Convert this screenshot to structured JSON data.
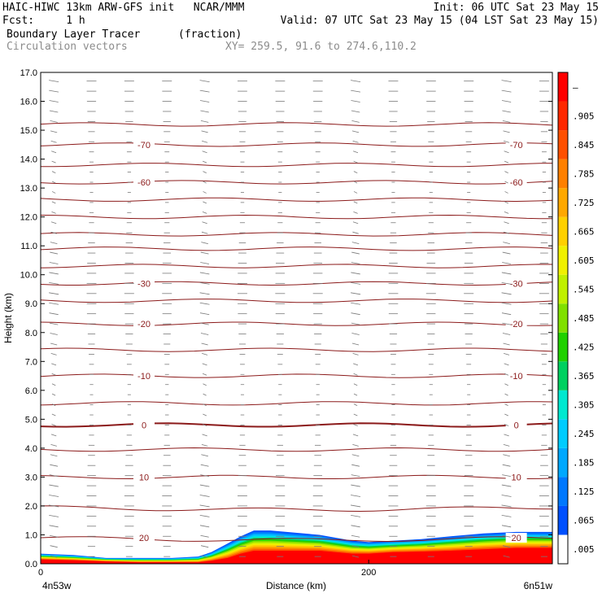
{
  "header": {
    "line1_left": "HAIC-HIWC 13km ARW-GFS init   NCAR/MMM",
    "line1_right": "Init: 06 UTC Sat 23 May 15",
    "line2_left": "Fcst:     1 h",
    "line2_right": "Valid: 07 UTC Sat 23 May 15 (04 LST Sat 23 May 15)",
    "field_name": "Boundary Layer Tracer",
    "field_units": "(fraction)",
    "vector_name": "Circulation vectors",
    "xy_text": "XY= 259.5, 91.6 to 274.6,110.2"
  },
  "chart_data": {
    "type": "cross-section",
    "ylabel": "Height (km)",
    "xlabel": "Distance (km)",
    "x_left_label": "4n53w",
    "x_right_label": "6n51w",
    "xlim": [
      0,
      312
    ],
    "ylim": [
      0.0,
      17.0
    ],
    "x_ticks": [
      0,
      200
    ],
    "y_ticks": [
      "0.0",
      "1.0",
      "2.0",
      "3.0",
      "4.0",
      "5.0",
      "6.0",
      "7.0",
      "8.0",
      "9.0",
      "10.0",
      "11.0",
      "12.0",
      "13.0",
      "14.0",
      "15.0",
      "16.0",
      "17.0"
    ],
    "colorbar_labels": [
      ".005",
      ".065",
      ".125",
      ".185",
      ".245",
      ".305",
      ".365",
      ".425",
      ".485",
      ".545",
      ".605",
      ".665",
      ".725",
      ".785",
      ".845",
      ".905",
      "–"
    ],
    "colorbar_colors": [
      "#ffffff",
      "#0050ff",
      "#0078ff",
      "#00a8ff",
      "#00ccff",
      "#00e8d0",
      "#00d060",
      "#20d000",
      "#80e000",
      "#c0f000",
      "#f0f000",
      "#ffd000",
      "#ffa800",
      "#ff8000",
      "#ff5000",
      "#ff2800",
      "#ff0000"
    ],
    "temperature_contour_labels": [
      {
        "text": "-70",
        "km": 14.5
      },
      {
        "text": "-60",
        "km": 13.2
      },
      {
        "text": "-30",
        "km": 9.7
      },
      {
        "text": "-20",
        "km": 8.3
      },
      {
        "text": "-10",
        "km": 6.5
      },
      {
        "text": "0",
        "km": 4.8
      },
      {
        "text": "10",
        "km": 3.0
      },
      {
        "text": "20",
        "km": 0.9
      }
    ],
    "isotherm_heights_km": [
      0.9,
      1.95,
      3.0,
      3.95,
      4.8,
      5.55,
      6.5,
      7.4,
      8.3,
      9.1,
      9.7,
      10.3,
      10.9,
      11.4,
      12.0,
      12.6,
      13.2,
      13.8,
      14.5,
      15.2
    ],
    "tracer_profile": {
      "x_km": [
        0,
        20,
        40,
        60,
        80,
        96,
        104,
        114,
        122,
        130,
        140,
        150,
        170,
        190,
        200,
        215,
        232,
        250,
        270,
        290,
        312
      ],
      "top_km": [
        0.35,
        0.3,
        0.2,
        0.2,
        0.2,
        0.25,
        0.4,
        0.7,
        0.95,
        1.15,
        1.15,
        1.1,
        1.0,
        0.8,
        0.75,
        0.8,
        0.85,
        0.95,
        1.05,
        1.1,
        1.1
      ],
      "core_top_km": [
        0.15,
        0.12,
        0.08,
        0.05,
        0.05,
        0.05,
        0.1,
        0.2,
        0.35,
        0.45,
        0.45,
        0.45,
        0.45,
        0.35,
        0.35,
        0.4,
        0.42,
        0.45,
        0.5,
        0.55,
        0.55
      ]
    }
  }
}
